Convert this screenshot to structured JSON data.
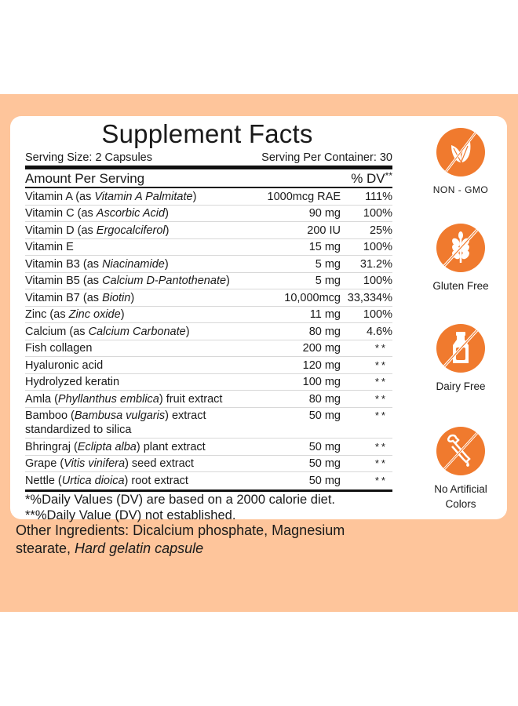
{
  "panel": {
    "title": "Supplement Facts",
    "serving_size": "Serving Size: 2 Capsules",
    "servings_per_container": "Serving Per Container: 30",
    "header_left": "Amount Per Serving",
    "header_right": "% DV",
    "header_right_mark": "**",
    "rows": [
      {
        "name": "Vitamin A (as ",
        "italic": "Vitamin A Palmitate",
        "suffix": ")",
        "amount": "1000mcg RAE",
        "dv": "111%"
      },
      {
        "name": "Vitamin C (as ",
        "italic": "Ascorbic Acid",
        "suffix": ")",
        "amount": "90 mg",
        "dv": "100%"
      },
      {
        "name": "Vitamin D (as ",
        "italic": "Ergocalciferol",
        "suffix": ")",
        "amount": "200 IU",
        "dv": "25%"
      },
      {
        "name": "Vitamin E",
        "italic": "",
        "suffix": "",
        "amount": "15 mg",
        "dv": "100%"
      },
      {
        "name": "Vitamin B3 (as ",
        "italic": "Niacinamide",
        "suffix": ")",
        "amount": "5 mg",
        "dv": "31.2%"
      },
      {
        "name": "Vitamin B5 (as ",
        "italic": "Calcium D-Pantothenate",
        "suffix": ")",
        "amount": "5 mg",
        "dv": "100%"
      },
      {
        "name": "Vitamin B7 (as ",
        "italic": "Biotin",
        "suffix": ")",
        "amount": "10,000mcg",
        "dv": "33,334%"
      },
      {
        "name": "Zinc (as ",
        "italic": "Zinc oxide",
        "suffix": ")",
        "amount": "11 mg",
        "dv": "100%"
      },
      {
        "name": "Calcium (as ",
        "italic": "Calcium Carbonate",
        "suffix": ")",
        "amount": "80 mg",
        "dv": "4.6%"
      },
      {
        "name": "Fish collagen",
        "italic": "",
        "suffix": "",
        "amount": "200 mg",
        "dv": "**"
      },
      {
        "name": "Hyaluronic acid",
        "italic": "",
        "suffix": "",
        "amount": "120 mg",
        "dv": "**"
      },
      {
        "name": "Hydrolyzed keratin",
        "italic": "",
        "suffix": "",
        "amount": "100 mg",
        "dv": "**"
      },
      {
        "name": "Amla (",
        "italic": "Phyllanthus emblica",
        "suffix": ") fruit extract",
        "amount": "80 mg",
        "dv": "**"
      },
      {
        "name": "Bamboo (",
        "italic": "Bambusa vulgaris",
        "suffix": ") extract standardized to silica",
        "amount": "50 mg",
        "dv": "**"
      },
      {
        "name": "Bhringraj (",
        "italic": "Eclipta alba",
        "suffix": ") plant extract",
        "amount": "50 mg",
        "dv": "**"
      },
      {
        "name": "Grape (",
        "italic": "Vitis vinifera",
        "suffix": ") seed extract",
        "amount": "50 mg",
        "dv": "**"
      },
      {
        "name": "Nettle (",
        "italic": "Urtica dioica",
        "suffix": ") root extract",
        "amount": "50 mg",
        "dv": "**"
      }
    ],
    "footnote_1": "*%Daily Values (DV) are based on a 2000 calorie diet.",
    "footnote_2": "**%Daily Value (DV) not established."
  },
  "other_ingredients": {
    "text": "Other Ingredients: Dicalcium phosphate, Magnesium stearate, ",
    "italic": "Hard gelatin capsule"
  },
  "badges": [
    {
      "icon": "leaf-crossed-icon",
      "label": "NON - GMO"
    },
    {
      "icon": "wheat-crossed-icon",
      "label": "Gluten Free"
    },
    {
      "icon": "milk-bottle-crossed-icon",
      "label": "Dairy Free"
    },
    {
      "icon": "dropper-crossed-icon",
      "label": "No Artificial Colors"
    }
  ],
  "colors": {
    "background_band": "#fec59b",
    "badge_orange": "#f07a2e",
    "card": "#ffffff",
    "text": "#1a1a1a"
  }
}
